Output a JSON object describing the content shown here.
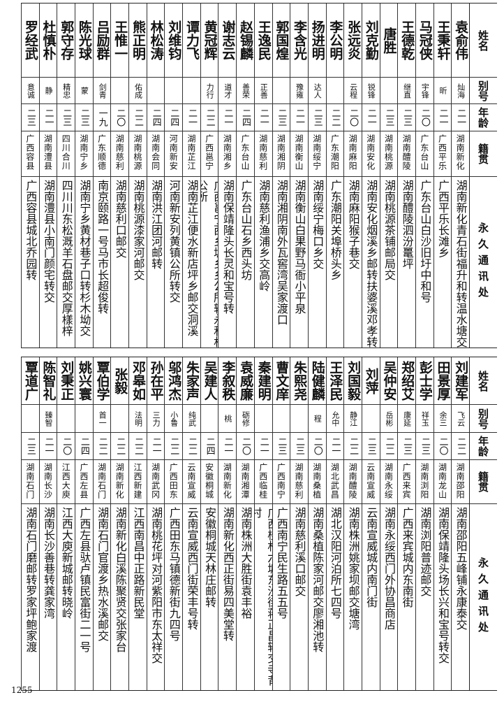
{
  "headers": {
    "name": "姓名",
    "alias": "别号",
    "age": "年龄",
    "origin": "籍贯",
    "address": "永久通讯处"
  },
  "top_table": [
    {
      "name": "袁俞伟",
      "alias": "灿海",
      "age": "二一",
      "origin": "湖南新化",
      "address": "湖南新化青石街福升和转温水塘交"
    },
    {
      "name": "王秉轩",
      "alias": "昕",
      "age": "二一",
      "origin": "广西平乐",
      "address": "广西平乐长滩乡"
    },
    {
      "name": "马冠侠",
      "alias": "宇锋",
      "age": "二〇",
      "origin": "广东台山",
      "address": "广东台山白沙旧圩中和号"
    },
    {
      "name": "王德乾",
      "alias": "继直",
      "age": "二三",
      "origin": "湖南醴陵",
      "address": "湖南醴陵泗汾鼍坪"
    },
    {
      "name": "唐胜",
      "alias": "",
      "age": "二三",
      "origin": "湖南桃源",
      "address": "湖南桃源茶铺邮局交"
    },
    {
      "name": "刘克勤",
      "alias": "锐锋",
      "age": "二一",
      "origin": "湖南安化",
      "address": "湖南安化烟溪乡邮转扶婆溪邓孝转"
    },
    {
      "name": "张远炎",
      "alias": "云程",
      "age": "二〇",
      "origin": "湖南麻阳",
      "address": "湖南麻阳猴子巷交"
    },
    {
      "name": "李公明",
      "alias": "",
      "age": "二二",
      "origin": "广东潮阳",
      "address": "广东潮阳关埠桥头乡"
    },
    {
      "name": "扬进明",
      "alias": "达人",
      "age": "二三",
      "origin": "湖南绥宁",
      "address": "湖南绥宁梅口乡交"
    },
    {
      "name": "李含光",
      "alias": "豫雍",
      "age": "二一",
      "origin": "湖南衡山",
      "address": "湖南衡山白果野马衙小平泉"
    },
    {
      "name": "郭国煌",
      "alias": "",
      "age": "二三",
      "origin": "湖南湘阴",
      "address": "湖南湘阴南外瓦窖湾吴家渡口"
    },
    {
      "name": "王逸民",
      "alias": "正善",
      "age": "二一",
      "origin": "湖南慈利",
      "address": "湖南慈利渔浦乡交高岭"
    },
    {
      "name": "赵锡麟",
      "alias": "善荣",
      "age": "二四",
      "origin": "广东台山",
      "address": "广东台山石乡西头坊"
    },
    {
      "name": "谢志云",
      "alias": "道才",
      "age": "二一",
      "origin": "湖南湘乡",
      "address": "湖南保靖隆头长灵和宝号转"
    },
    {
      "name": "黄冠辉",
      "alias": "力行",
      "age": "二二",
      "origin": "广西邕宁",
      "address": "广西邕宁西乡塘乡乡公所转永和村公所"
    },
    {
      "name": "谭力飞",
      "alias": "",
      "age": "二一",
      "origin": "湖南芷江",
      "address": "湖南芷江便水新店坪乡邮交洞溪"
    },
    {
      "name": "刘维钧",
      "alias": "",
      "age": "二四",
      "origin": "河南新安",
      "address": "河南新安列黄镇公所转交"
    },
    {
      "name": "林松涛",
      "alias": "",
      "age": "二四",
      "origin": "湖南会同",
      "address": "湖南洪江团河邮转"
    },
    {
      "name": "熊正明",
      "alias": "佑成",
      "age": "二二",
      "origin": "湖南桃源",
      "address": "湖南桃源漆家河邮交"
    },
    {
      "name": "王惟一",
      "alias": "",
      "age": "二〇",
      "origin": "湖南慈利",
      "address": "湖南慈利口邮交"
    },
    {
      "name": "吕励群",
      "alias": "剑青",
      "age": "一九",
      "origin": "广东顺德",
      "address": "南京颐路一号马市长超俊转"
    },
    {
      "name": "陈光球",
      "alias": "蒙",
      "age": "二三",
      "origin": "湖南宁乡",
      "address": "湖南宁乡黄材巷子口转杉木坳交"
    },
    {
      "name": "郭守存",
      "alias": "精忠",
      "age": "二三",
      "origin": "四川合川",
      "address": "四川川东松溉羊石盘邮交厚樣梓"
    },
    {
      "name": "杜慎朴",
      "alias": "静",
      "age": "二一",
      "origin": "湖南澧县",
      "address": "湖南澧县小南门颜宅转交"
    },
    {
      "name": "罗经武",
      "alias": "意诚",
      "age": "二三",
      "origin": "广西容县",
      "address": "广西容县城北乔园转"
    }
  ],
  "bottom_table": [
    {
      "name": "刘建军",
      "alias": "飞云",
      "age": "二二",
      "origin": "湖南邵阳",
      "address": "湖南邵阳五峰铺永康泰交"
    },
    {
      "name": "田景厚",
      "alias": "余三",
      "age": "二〇",
      "origin": "湖南龙山",
      "address": "湖南保靖隆头场长兴和宝号转交"
    },
    {
      "name": "彭士学",
      "alias": "祥玉",
      "age": "二三",
      "origin": "湖南浏阳",
      "address": "湖南浏阳普迹邮交"
    },
    {
      "name": "郑绍艾",
      "alias": "康延",
      "age": "二三",
      "origin": "广西来宾",
      "address": "广西来宾城内东南街"
    },
    {
      "name": "吴仲安",
      "alias": "岳彬",
      "age": "二二",
      "origin": "湖南永绥",
      "address": "湖南永绥西门外协昌商店"
    },
    {
      "name": "刘萍",
      "alias": "",
      "age": "二三",
      "origin": "云南宣威",
      "address": "云南宣威城内南门街"
    },
    {
      "name": "刘国毅",
      "alias": "静江",
      "age": "二二",
      "origin": "湖南醴陵",
      "address": "湖南株洲姚家坝邮交塘湾"
    },
    {
      "name": "王泽民",
      "alias": "允中",
      "age": "二一",
      "origin": "湖北武昌",
      "address": "湖北汉阳河泊所七四号"
    },
    {
      "name": "陆健麟",
      "alias": "程",
      "age": "二〇",
      "origin": "湖南桑植",
      "address": "湖南桑植陈家河邮交廖湘池转"
    },
    {
      "name": "朱熙尧",
      "alias": "",
      "age": "二三",
      "origin": "湖南慈利",
      "address": "湖南慈利溪口邮交"
    },
    {
      "name": "曹文庠",
      "alias": "",
      "age": "二三",
      "origin": "广西南宁",
      "address": "广西南宁民生路五五号"
    },
    {
      "name": "秦建明",
      "alias": "",
      "age": "二一",
      "origin": "广西临桂",
      "address": "广西桂林六塘东沙街蒋正昌转交寺背村"
    },
    {
      "name": "袁威廉",
      "alias": "砺修",
      "age": "二〇",
      "origin": "湖南湘潭",
      "address": "湖南株洲大胜街袁丰裕"
    },
    {
      "name": "李叙秩",
      "alias": "桃",
      "age": "二一",
      "origin": "湖南新化",
      "address": "湖南新化西正街易四美堂转"
    },
    {
      "name": "吴建人",
      "alias": "",
      "age": "二四",
      "origin": "安徽桐城",
      "address": "安徽桐城天林庄邮转"
    },
    {
      "name": "朱家声",
      "alias": "纯武",
      "age": "二二",
      "origin": "云南宣威",
      "address": "云南宣威西门街荣丰号转"
    },
    {
      "name": "邬鸿杰",
      "alias": "小鲁",
      "age": "二二",
      "origin": "广西田东",
      "address": "广西田东马镇德新街九四号"
    },
    {
      "name": "孙在平",
      "alias": "三力",
      "age": "二一",
      "origin": "湖南武冈",
      "address": "湖南桃花坪对河紫阳市东太祥交"
    },
    {
      "name": "邓皋如",
      "alias": "法明",
      "age": "二二",
      "origin": "江西新建",
      "address": "江西南昌中正路新民堂"
    },
    {
      "name": "张毅",
      "alias": "",
      "age": "二二",
      "origin": "湖南新化",
      "address": "湖南新化白溪陈聚贤交张家台"
    },
    {
      "name": "覃伯学",
      "alias": "首一",
      "age": "二二",
      "origin": "湖南石门",
      "address": "湖南石门官渡乡热水溪邮交"
    },
    {
      "name": "姚兴寰",
      "alias": "",
      "age": "二四",
      "origin": "广西左县",
      "address": "广西左县驮卢镇民富街二一号"
    },
    {
      "name": "刘秉正",
      "alias": "",
      "age": "二〇",
      "origin": "江西大庾",
      "address": "江西大庾新城邮转晓岭"
    },
    {
      "name": "陈智礼",
      "alias": "臻智",
      "age": "二一",
      "origin": "湖南长沙",
      "address": "湖南长沙善巷转龚家湾"
    },
    {
      "name": "覃道广",
      "alias": "",
      "age": "二三",
      "origin": "湖南石门",
      "address": "湖南石门磨邮转罗家坪鲍家渡"
    }
  ],
  "page_number": "1255"
}
